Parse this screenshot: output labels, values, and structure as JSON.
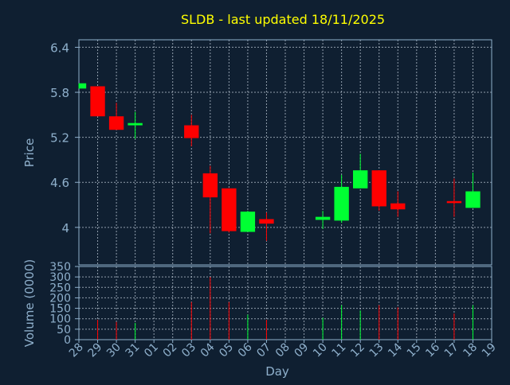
{
  "chart_data": {
    "type": "candlestick",
    "title": "SLDB - last updated 18/11/2025",
    "xlabel": "Day",
    "price_panel": {
      "ylabel": "Price",
      "ylim": [
        3.5,
        6.5
      ],
      "yticks": [
        "4",
        "4.6",
        "5.2",
        "5.8",
        "6.4"
      ],
      "ytick_values": [
        4.0,
        4.6,
        5.2,
        5.8,
        6.4
      ]
    },
    "volume_panel": {
      "ylabel": "Volume (0000)",
      "ylim": [
        0,
        350
      ],
      "yticks": [
        "0",
        "50",
        "100",
        "150",
        "200",
        "250",
        "300",
        "350"
      ],
      "ytick_values": [
        0,
        50,
        100,
        150,
        200,
        250,
        300,
        350
      ]
    },
    "x_ticks": [
      "28",
      "29",
      "30",
      "31",
      "01",
      "02",
      "03",
      "04",
      "05",
      "06",
      "07",
      "08",
      "09",
      "10",
      "11",
      "12",
      "13",
      "14",
      "15",
      "16",
      "17",
      "18",
      "19"
    ],
    "grid": true,
    "colors": {
      "background": "#0f1f31",
      "up": "#00ff33",
      "down": "#ff0000",
      "title": "#ffff00",
      "axis_text": "#8fb0cc",
      "axis_line": "#8fb0cc",
      "grid": "#c8d4e0"
    },
    "candles": [
      {
        "day": "28",
        "open": 5.85,
        "high": 5.92,
        "low": 5.85,
        "close": 5.92,
        "volume": 0
      },
      {
        "day": "29",
        "open": 5.88,
        "high": 5.88,
        "low": 5.48,
        "close": 5.48,
        "volume": 95
      },
      {
        "day": "30",
        "open": 5.48,
        "high": 5.66,
        "low": 5.3,
        "close": 5.3,
        "volume": 85
      },
      {
        "day": "31",
        "open": 5.36,
        "high": 5.54,
        "low": 5.18,
        "close": 5.39,
        "volume": 80
      },
      {
        "day": "03",
        "open": 5.36,
        "high": 5.5,
        "low": 5.08,
        "close": 5.19,
        "volume": 180
      },
      {
        "day": "04",
        "open": 4.72,
        "high": 4.82,
        "low": 3.92,
        "close": 4.4,
        "volume": 300
      },
      {
        "day": "05",
        "open": 4.52,
        "high": 4.52,
        "low": 3.93,
        "close": 3.95,
        "volume": 180
      },
      {
        "day": "06",
        "open": 3.94,
        "high": 4.22,
        "low": 3.94,
        "close": 4.21,
        "volume": 120
      },
      {
        "day": "07",
        "open": 4.11,
        "high": 4.2,
        "low": 3.82,
        "close": 4.05,
        "volume": 95
      },
      {
        "day": "10",
        "open": 4.1,
        "high": 4.22,
        "low": 3.98,
        "close": 4.14,
        "volume": 105
      },
      {
        "day": "11",
        "open": 4.09,
        "high": 4.7,
        "low": 4.06,
        "close": 4.54,
        "volume": 165
      },
      {
        "day": "12",
        "open": 4.52,
        "high": 4.98,
        "low": 4.52,
        "close": 4.76,
        "volume": 140
      },
      {
        "day": "13",
        "open": 4.76,
        "high": 4.76,
        "low": 4.22,
        "close": 4.28,
        "volume": 165
      },
      {
        "day": "14",
        "open": 4.32,
        "high": 4.48,
        "low": 4.14,
        "close": 4.24,
        "volume": 155
      },
      {
        "day": "17",
        "open": 4.35,
        "high": 4.65,
        "low": 4.14,
        "close": 4.33,
        "volume": 125
      },
      {
        "day": "18",
        "open": 4.26,
        "high": 4.73,
        "low": 4.26,
        "close": 4.48,
        "volume": 165
      }
    ]
  }
}
